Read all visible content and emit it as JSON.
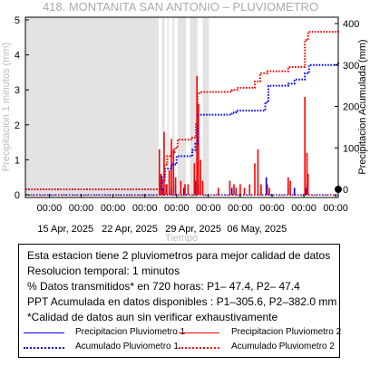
{
  "chart_data": {
    "type": "bar",
    "title": "418. MONTANITA SAN ANTONIO – PLUVIOMETRO",
    "xlabel": "Tiempo",
    "ylabel_left": "Precipitacion 1 minutos (mm)",
    "ylabel_right": "Precipitacion Acumulada (mm)",
    "ylim_left": [
      0,
      5
    ],
    "ylim_right": [
      0,
      400
    ],
    "yticks_left": [
      "0",
      "1",
      "2",
      "3",
      "4",
      "5"
    ],
    "yticks_right": [
      "0",
      "100",
      "200",
      "300",
      "400"
    ],
    "x_time_labels": [
      "00:00",
      "00:00",
      "00:00",
      "00:00",
      "00:00",
      "00:00",
      "00:00",
      "00:00",
      "00:00",
      "00:00"
    ],
    "x_date_labels": [
      "15 Apr, 2025",
      "22 Apr, 2025",
      "29 Apr, 2025",
      "06 May, 2025"
    ],
    "xlim_days": [
      0,
      30
    ],
    "no_data_intervals_days": [
      [
        0,
        12.8
      ],
      [
        13.1,
        13.35
      ],
      [
        13.6,
        13.75
      ],
      [
        14.1,
        14.3
      ],
      [
        14.6,
        15.4
      ],
      [
        15.8,
        16.5
      ],
      [
        17.0,
        17.6
      ]
    ],
    "series": [
      {
        "name": "Precipitacion Pluviometro 1",
        "color": "#0000ff",
        "kind": "bars",
        "x": [
          13.05,
          13.25,
          13.5,
          14.0,
          14.4,
          15.2,
          16.3,
          16.6,
          19.8,
          23.1,
          23.2,
          25.2,
          25.8,
          26.9,
          27.0
        ],
        "values": [
          0.5,
          0.2,
          0.3,
          0.2,
          0.3,
          0.2,
          0.4,
          0.3,
          0.2,
          0.5,
          0.2,
          0.2,
          0.2,
          0.2,
          0.3
        ]
      },
      {
        "name": "Precipitacion Pluviometro 2",
        "color": "#ff0000",
        "kind": "bars",
        "x": [
          12.85,
          13.0,
          13.1,
          13.3,
          13.55,
          13.8,
          14.0,
          14.2,
          14.4,
          14.9,
          15.3,
          15.6,
          16.2,
          16.45,
          16.6,
          16.8,
          17.0,
          18.5,
          19.6,
          20.0,
          20.2,
          20.6,
          21.0,
          21.5,
          22.0,
          22.3,
          22.6,
          23.2,
          23.4,
          25.2,
          25.4,
          26.8,
          27.0,
          27.1
        ],
        "values": [
          1.3,
          0.6,
          0.4,
          1.8,
          0.3,
          0.7,
          1.6,
          1.3,
          0.5,
          0.4,
          0.3,
          0.3,
          0.9,
          3.4,
          2.6,
          1.0,
          0.4,
          0.2,
          0.4,
          0.3,
          0.2,
          0.3,
          0.2,
          0.3,
          0.9,
          1.3,
          0.3,
          0.3,
          0.2,
          0.5,
          0.4,
          2.8,
          1.2,
          0.6
        ]
      },
      {
        "name": "Acumulado Pluviometro 1",
        "color": "#0000ff",
        "kind": "dotted-step",
        "x": [
          0,
          12.85,
          13.1,
          13.4,
          14.0,
          14.5,
          16.0,
          16.3,
          16.5,
          19.8,
          20.2,
          23.0,
          23.3,
          25.2,
          25.8,
          26.8,
          27.2,
          30
        ],
        "values": [
          0,
          0,
          30,
          50,
          60,
          80,
          95,
          110,
          180,
          185,
          190,
          210,
          250,
          255,
          265,
          280,
          300,
          305.6
        ]
      },
      {
        "name": "Acumulado Pluviometro 2",
        "color": "#ff0000",
        "kind": "dotted-step",
        "x": [
          0,
          12.8,
          12.9,
          13.35,
          13.6,
          14.0,
          14.3,
          14.6,
          16.0,
          16.35,
          16.5,
          16.7,
          19.8,
          20.3,
          22.0,
          22.5,
          23.2,
          25.2,
          26.8,
          27.1,
          30
        ],
        "values": [
          0,
          0,
          20,
          60,
          80,
          90,
          100,
          120,
          125,
          160,
          230,
          235,
          240,
          245,
          260,
          280,
          285,
          295,
          360,
          380,
          382.0
        ]
      }
    ]
  },
  "info": {
    "line1": "Esta estacion tiene 2 pluviometros para mejor calidad de datos",
    "line2": "Resolucion temporal: 1 minutos",
    "line3": "% Datos transmitidos* en 720 horas: P1– 47.4, P2– 47.4",
    "line4": "PPT Acumulada en datos disponibles : P1–305.6, P2–382.0 mm",
    "line5": "*Calidad de datos aun sin verificar exhaustivamente"
  },
  "legend": {
    "p1_bar": "Precipitacion Pluviometro 1",
    "p2_bar": "Precipitacion Pluviometro 2",
    "p1_acc": "Acumulado Pluviometro 1",
    "p2_acc": "Acumulado Pluviometro 2"
  }
}
